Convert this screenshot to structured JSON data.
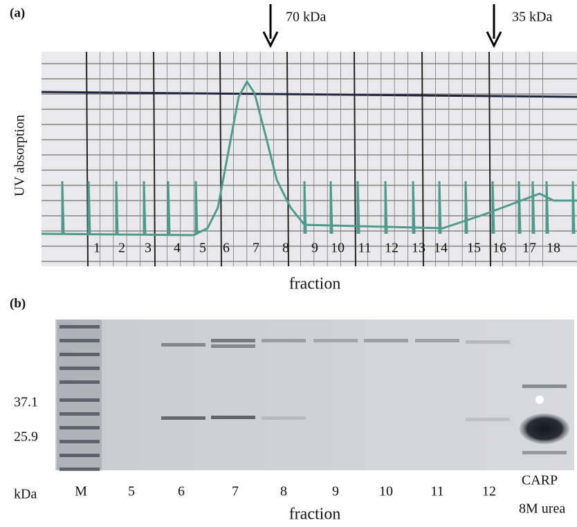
{
  "panel_a": {
    "label": "(a)",
    "arrows": [
      "70 kDa",
      "35 kDa"
    ],
    "y_label": "UV absorption",
    "fractions": [
      "1",
      "2",
      "3",
      "4",
      "5",
      "6",
      "7",
      "8",
      "9",
      "10",
      "11",
      "12",
      "13",
      "14",
      "15",
      "16",
      "17",
      "18"
    ],
    "x_label": "fraction"
  },
  "panel_b": {
    "label": "(b)",
    "markers": [
      "37.1",
      "25.9"
    ],
    "unit": "kDa",
    "lanes": [
      "M",
      "5",
      "6",
      "7",
      "8",
      "9",
      "10",
      "11",
      "12",
      "CARP"
    ],
    "lane_note": "8M urea",
    "x_label": "fraction"
  }
}
